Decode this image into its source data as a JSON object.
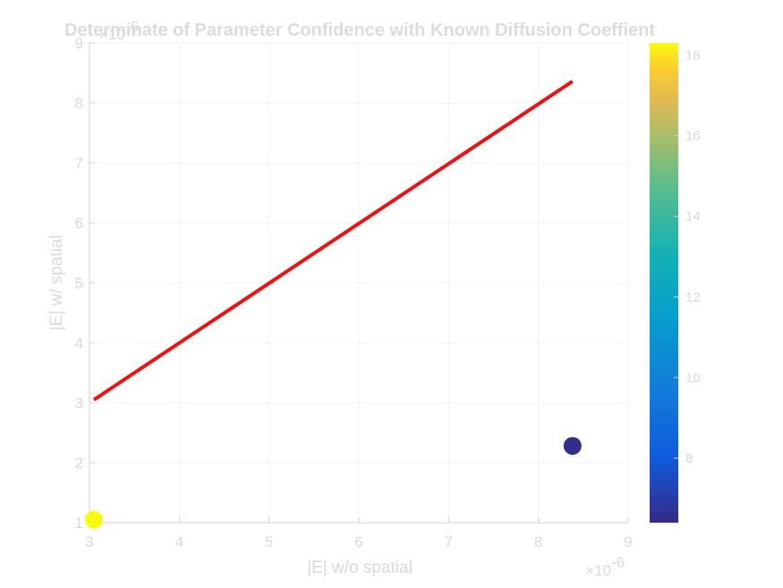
{
  "chart_data": {
    "type": "scatter",
    "title": "Determinate of Parameter Confidence with Known Diffusion Coeffient",
    "xlabel": "|E| w/o spatial",
    "ylabel": "|E| w/ spatial",
    "x_exponent_label": "×10",
    "x_exponent_value": "-6",
    "y_exponent_label": "×10",
    "y_exponent_value": "-6",
    "xlim": [
      3,
      9
    ],
    "ylim": [
      1,
      9
    ],
    "x_ticks": [
      "3",
      "4",
      "5",
      "6",
      "7",
      "8",
      "9"
    ],
    "y_ticks": [
      "1",
      "2",
      "3",
      "4",
      "5",
      "6",
      "7",
      "8",
      "9"
    ],
    "grid": true,
    "points": [
      {
        "x": 3.05,
        "y": 1.05,
        "c": 18.3
      },
      {
        "x": 8.38,
        "y": 2.28,
        "c": 6.5
      }
    ],
    "reference_line": {
      "x": [
        3.05,
        8.38
      ],
      "y": [
        3.05,
        8.36
      ],
      "color": "#ee1111"
    },
    "colorbar": {
      "range": [
        6.4,
        18.3
      ],
      "ticks": [
        "8",
        "10",
        "12",
        "14",
        "16",
        "18"
      ],
      "colormap": "parula"
    }
  }
}
